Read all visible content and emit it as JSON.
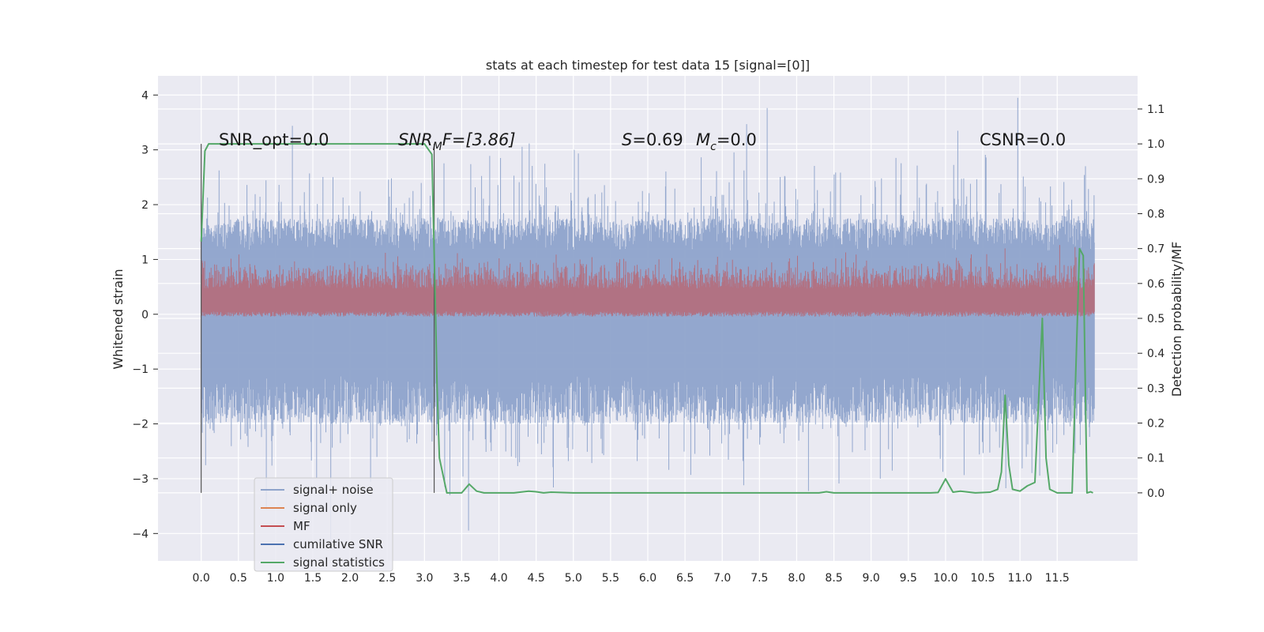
{
  "chart_data": {
    "type": "line",
    "title": "stats at each timestep for test data 15 [signal=[0]]",
    "xlabel": "",
    "ylabel": "Whitened strain",
    "y2label": "Detection probability/MF",
    "xlim": [
      -0.58,
      12.58
    ],
    "ylim": [
      -4.5,
      4.35
    ],
    "y2lim": [
      -0.195,
      1.195
    ],
    "x_ticks": [
      "0.0",
      "0.5",
      "1.0",
      "1.5",
      "2.0",
      "2.5",
      "3.0",
      "3.5",
      "4.0",
      "4.5",
      "5.0",
      "5.5",
      "6.0",
      "6.5",
      "7.0",
      "7.5",
      "8.0",
      "8.5",
      "9.0",
      "9.5",
      "10.0",
      "10.5",
      "11.0",
      "11.5"
    ],
    "y_ticks": [
      "4",
      "3",
      "2",
      "1",
      "0",
      "−1",
      "−2",
      "−3",
      "−4"
    ],
    "y2_ticks": [
      "1.1",
      "1.0",
      "0.9",
      "0.8",
      "0.7",
      "0.6",
      "0.5",
      "0.4",
      "0.3",
      "0.2",
      "0.1",
      "0.0"
    ],
    "grid": true,
    "legend_position": "lower-left",
    "annotations": {
      "snr_opt": "SNR_opt=0.0",
      "snr_mf_base": "SNR",
      "snr_mf_sub": "M",
      "snr_mf_rest": "F=[3.86]",
      "s_label": "S",
      "s_value": "=0.69",
      "mc_label": "M",
      "mc_sub": "c",
      "mc_value": "=0.0",
      "csnr": "CSNR=0.0"
    },
    "series": [
      {
        "name": "signal+ noise",
        "color": "#8ea3cb",
        "axis": "left",
        "x_range": [
          0.0,
          12.0
        ],
        "amplitude_range": [
          -4.1,
          3.95
        ]
      },
      {
        "name": "signal only",
        "color": "#dd8452",
        "axis": "left",
        "x_range": [
          0.0,
          12.0
        ],
        "values": [
          0,
          0
        ]
      },
      {
        "name": "MF",
        "color": "#c44e52",
        "axis": "right",
        "x_range": [
          0.0,
          12.0
        ],
        "amplitude_range": [
          0.505,
          0.72
        ]
      },
      {
        "name": "cumilative SNR",
        "color": "#4c72b0",
        "axis": "left",
        "x_range": [
          0.0,
          12.0
        ],
        "values": [
          0,
          0
        ]
      },
      {
        "name": "signal statistics",
        "color": "#55a868",
        "axis": "right",
        "x": [
          0.0,
          0.05,
          0.1,
          0.3,
          1.0,
          2.0,
          2.9,
          3.0,
          3.05,
          3.1,
          3.15,
          3.17,
          3.2,
          3.3,
          3.5,
          3.6,
          3.7,
          3.8,
          3.9,
          4.0,
          4.2,
          4.4,
          4.5,
          4.6,
          4.7,
          5.0,
          5.2,
          5.5,
          6.0,
          7.0,
          8.0,
          8.3,
          8.4,
          8.5,
          9.0,
          9.5,
          9.8,
          9.9,
          10.0,
          10.1,
          10.2,
          10.4,
          10.6,
          10.7,
          10.75,
          10.8,
          10.85,
          10.9,
          11.0,
          11.1,
          11.2,
          11.3,
          11.35,
          11.4,
          11.5,
          11.7,
          11.8,
          11.85,
          11.9,
          11.95,
          11.98
        ],
        "values": [
          0.72,
          0.98,
          1.0,
          1.0,
          1.0,
          1.0,
          1.0,
          1.0,
          0.985,
          0.97,
          0.5,
          0.3,
          0.1,
          0.0,
          0.0,
          0.025,
          0.005,
          0.0,
          0.0,
          0.0,
          0.0,
          0.005,
          0.003,
          0.0,
          0.002,
          0.0,
          0.0,
          0.0,
          0.0,
          0.0,
          0.0,
          0.0,
          0.003,
          0.0,
          0.0,
          0.0,
          0.0,
          0.001,
          0.04,
          0.002,
          0.005,
          0.0,
          0.002,
          0.01,
          0.06,
          0.28,
          0.08,
          0.01,
          0.005,
          0.02,
          0.03,
          0.5,
          0.1,
          0.01,
          0.0,
          0.0,
          0.7,
          0.68,
          0.0,
          0.003,
          0.0
        ]
      }
    ],
    "colors": {
      "plot_bg": "#eaeaf2",
      "grid": "#ffffff",
      "text": "#262626"
    }
  }
}
